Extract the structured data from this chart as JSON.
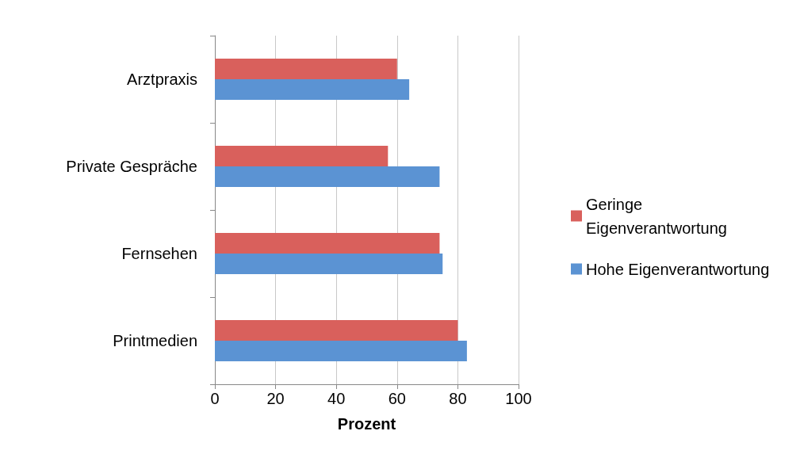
{
  "chart_data": {
    "type": "bar",
    "orientation": "horizontal",
    "xlabel": "Prozent",
    "categories": [
      "Arztpraxis",
      "Private Gespräche",
      "Fernsehen",
      "Printmedien"
    ],
    "series": [
      {
        "name": "Geringe Eigenverantwortung",
        "color": "#d9605c",
        "values": [
          60,
          57,
          74,
          80
        ]
      },
      {
        "name": "Hohe Eigenverantwortung",
        "color": "#5b93d3",
        "values": [
          64,
          74,
          75,
          83
        ]
      }
    ],
    "xlim": [
      0,
      100
    ],
    "xticks": [
      0,
      20,
      40,
      60,
      80,
      100
    ],
    "grid": "x",
    "legend": "right"
  }
}
